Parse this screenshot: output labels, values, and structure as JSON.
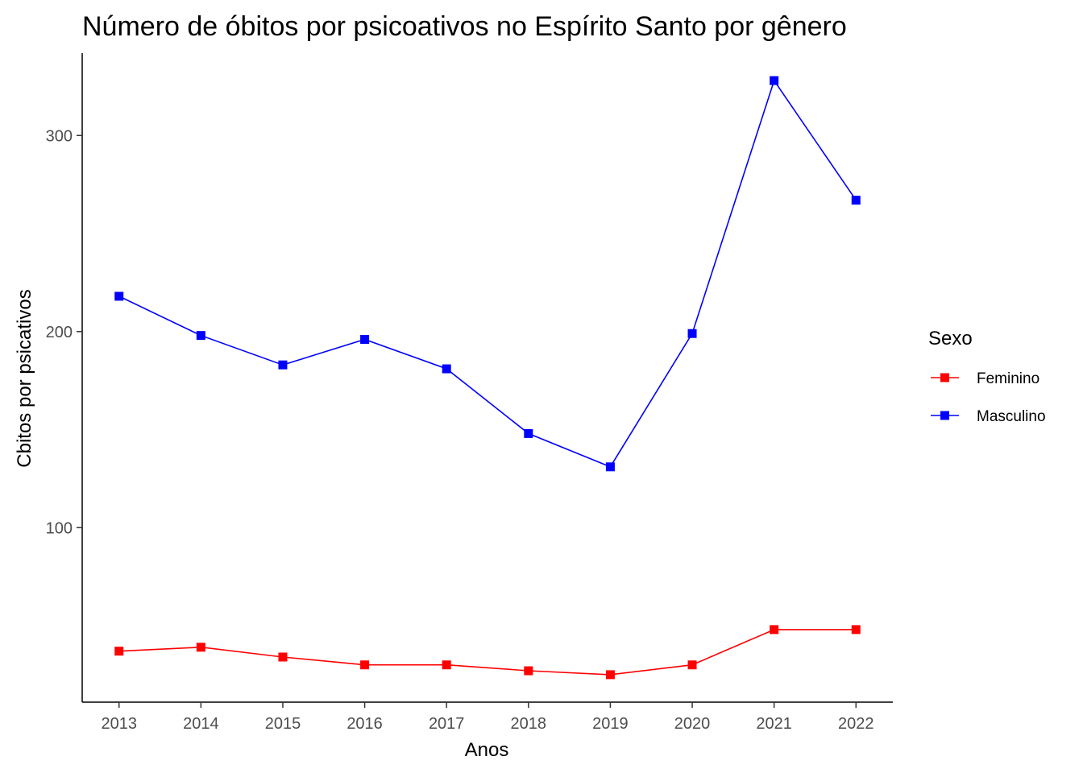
{
  "chart_data": {
    "type": "line",
    "title": "Número de óbitos por psicoativos no Espírito Santo por gênero",
    "xlabel": "Anos",
    "ylabel": "Cbitos por psicativos",
    "x": [
      2013,
      2014,
      2015,
      2016,
      2017,
      2018,
      2019,
      2020,
      2021,
      2022
    ],
    "x_tick_labels": [
      "2013",
      "2014",
      "2015",
      "2016",
      "2017",
      "2018",
      "2019",
      "2020",
      "2021",
      "2022"
    ],
    "y_ticks": [
      100,
      200,
      300
    ],
    "y_tick_labels": [
      "100",
      "200",
      "300"
    ],
    "xlim": [
      2012.55,
      2022.45
    ],
    "ylim": [
      11,
      342
    ],
    "grid": false,
    "legend": {
      "title": "Sexo",
      "position": "right"
    },
    "series": [
      {
        "name": "Feminino",
        "color": "#ff0000",
        "values": [
          37,
          39,
          34,
          30,
          30,
          27,
          25,
          30,
          48,
          48
        ]
      },
      {
        "name": "Masculino",
        "color": "#0000ff",
        "values": [
          218,
          198,
          183,
          196,
          181,
          148,
          131,
          199,
          328,
          267
        ]
      }
    ]
  }
}
